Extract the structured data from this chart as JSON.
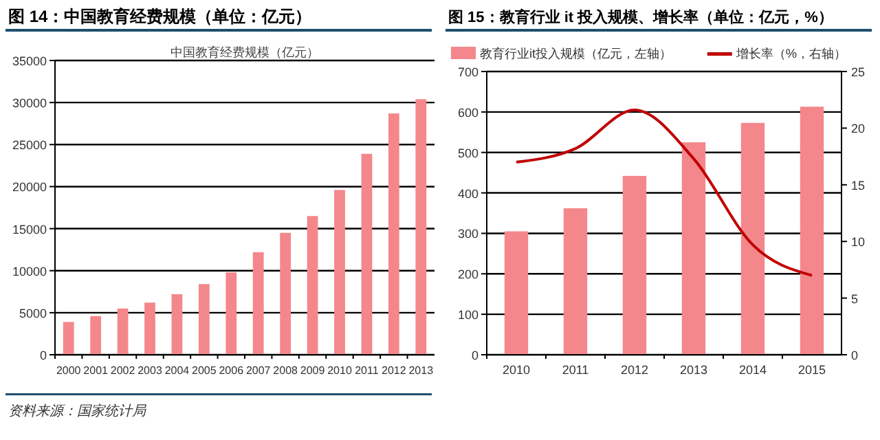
{
  "chart_data": [
    {
      "type": "bar",
      "title": "图 14：中国教育经费规模（单位：亿元）",
      "subtitle": "中国教育经费规模（亿元）",
      "categories": [
        "2000",
        "2001",
        "2002",
        "2003",
        "2004",
        "2005",
        "2006",
        "2007",
        "2008",
        "2009",
        "2010",
        "2011",
        "2012",
        "2013"
      ],
      "values": [
        3900,
        4600,
        5500,
        6200,
        7200,
        8400,
        9800,
        12200,
        14500,
        16500,
        19600,
        23900,
        28700,
        30400
      ],
      "color": "#f4878b",
      "ylim": [
        0,
        35000
      ],
      "yticks": [
        0,
        5000,
        10000,
        15000,
        20000,
        25000,
        30000,
        35000
      ],
      "grid": "y",
      "annotations": [
        "资料来源：国家统计局"
      ]
    },
    {
      "type": "bar",
      "title": "图 15：教育行业 it 投入规模、增长率（单位：亿元，%）",
      "categories": [
        "2010",
        "2011",
        "2012",
        "2013",
        "2014",
        "2015"
      ],
      "series": [
        {
          "name": "教育行业it投入规模（亿元，左轴）",
          "color": "#f4878b",
          "values": [
            305,
            362,
            442,
            525,
            573,
            613
          ]
        },
        {
          "name": "增长率（%，右轴）",
          "type": "line",
          "axis": "y2",
          "color": "#c00000",
          "values": [
            17.0,
            18.2,
            21.6,
            17.3,
            9.7,
            7.0
          ]
        }
      ],
      "ylim": [
        0,
        700
      ],
      "yticks": [
        0,
        100,
        200,
        300,
        400,
        500,
        600,
        700
      ],
      "y2lim": [
        0,
        25
      ],
      "y2ticks": [
        0,
        5,
        10,
        15,
        20,
        25
      ],
      "grid": "y",
      "legend": "top"
    }
  ]
}
